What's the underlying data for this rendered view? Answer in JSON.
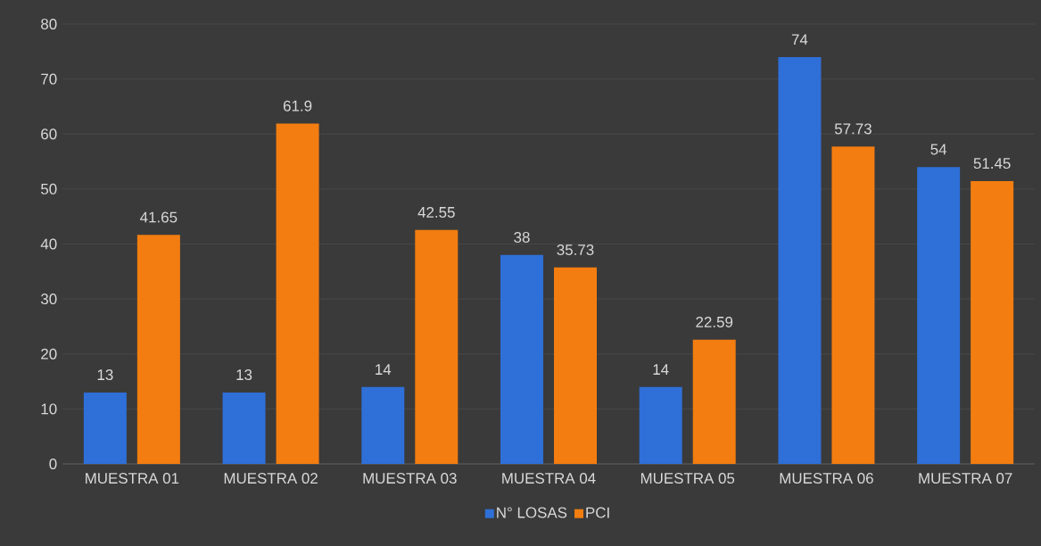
{
  "chart_data": {
    "type": "bar",
    "categories": [
      "MUESTRA 01",
      "MUESTRA 02",
      "MUESTRA 03",
      "MUESTRA 04",
      "MUESTRA 05",
      "MUESTRA 06",
      "MUESTRA 07"
    ],
    "series": [
      {
        "name": "N° LOSAS",
        "color": "#2f6fd8",
        "values": [
          13,
          13,
          14,
          38,
          14,
          74,
          54
        ],
        "value_labels": [
          "13",
          "13",
          "14",
          "38",
          "14",
          "74",
          "54"
        ]
      },
      {
        "name": "PCI",
        "color": "#f37d10",
        "values": [
          41.65,
          61.9,
          42.55,
          35.73,
          22.59,
          57.73,
          51.45
        ],
        "value_labels": [
          "41.65",
          "61.9",
          "42.55",
          "35.73",
          "22.59",
          "57.73",
          "51.45"
        ]
      }
    ],
    "ylim": [
      0,
      80
    ],
    "yticks": [
      0,
      10,
      20,
      30,
      40,
      50,
      60,
      70,
      80
    ],
    "grid": "y",
    "legend": "bottom"
  }
}
